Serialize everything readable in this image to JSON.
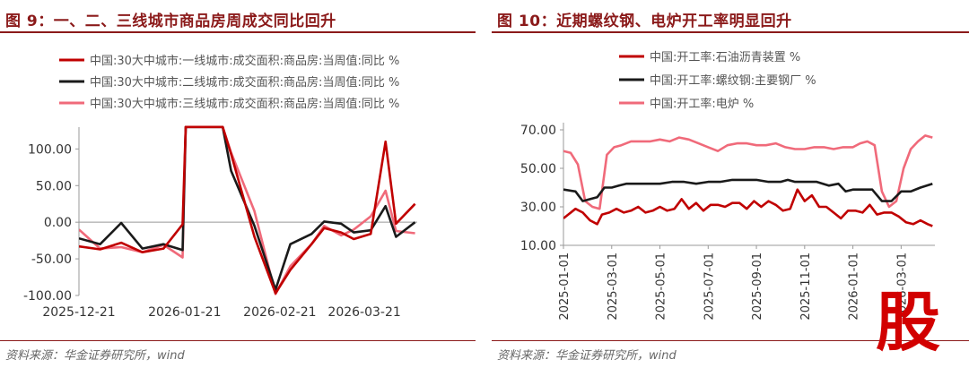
{
  "left": {
    "title": "图 9：一、二、三线城市商品房周成交同比回升",
    "source": "资料来源：华金证券研究所，wind",
    "chart_data": {
      "type": "line",
      "ylim": [
        -100,
        120
      ],
      "yticks": [
        100,
        50,
        0,
        -50,
        -100
      ],
      "ytick_labels": [
        "100.00",
        "50.00",
        "0.00",
        "-50.00",
        "-100.00"
      ],
      "xlim": [
        0,
        16
      ],
      "xtick_labels": [
        {
          "x": 0,
          "label": "2025-12-21"
        },
        {
          "x": 5,
          "label": "2026-01-21"
        },
        {
          "x": 9.5,
          "label": "2026-02-21"
        },
        {
          "x": 13.5,
          "label": "2026-03-21"
        }
      ],
      "series": [
        {
          "name": "中国:30大中城市:一线城市:成交面积:商品房:当周值:同比 %",
          "color": "#c00000",
          "x": [
            0,
            1,
            2,
            3,
            4,
            4.9,
            5.05,
            6.8,
            7.2,
            8.3,
            9.3,
            10,
            11,
            11.6,
            12.4,
            13,
            13.8,
            14.5,
            15,
            15.9
          ],
          "y": [
            -33,
            -37,
            -28,
            -41,
            -36,
            -3,
            130,
            130,
            93,
            -20,
            -97,
            -65,
            -30,
            -8,
            -14,
            -23,
            -16,
            110,
            -2,
            25
          ]
        },
        {
          "name": "中国:30大中城市:二线城市:成交面积:商品房:当周值:同比 %",
          "color": "#1a1a1a",
          "x": [
            0,
            1,
            2,
            3,
            4,
            4.9,
            5.05,
            6.8,
            7.2,
            8.3,
            9.3,
            10,
            11,
            11.6,
            12.4,
            13,
            13.8,
            14.5,
            15,
            15.9
          ],
          "y": [
            -22,
            -30,
            -1,
            -36,
            -30,
            -38,
            130,
            130,
            70,
            -5,
            -92,
            -30,
            -16,
            1,
            -2,
            -14,
            -11,
            22,
            -20,
            0
          ]
        },
        {
          "name": "中国:30大中城市:三线城市:成交面积:商品房:当周值:同比 %",
          "color": "#f06a7a",
          "x": [
            0,
            1,
            2,
            3,
            4,
            4.9,
            5.05,
            6.8,
            7.2,
            8.3,
            9.3,
            10,
            11,
            11.6,
            12.4,
            13,
            13.8,
            14.5,
            15,
            15.9
          ],
          "y": [
            -10,
            -36,
            -34,
            -41,
            -31,
            -48,
            130,
            130,
            95,
            15,
            -98,
            -60,
            -30,
            -5,
            -18,
            -10,
            8,
            43,
            -12,
            -15
          ]
        }
      ]
    }
  },
  "right": {
    "title": "图 10：近期螺纹钢、电炉开工率明显回升",
    "source": "资料来源：华金证券研究所，wind",
    "chart_data": {
      "type": "line",
      "ylim": [
        10,
        70
      ],
      "yticks": [
        70,
        50,
        30,
        10
      ],
      "ytick_labels": [
        "70.00",
        "50.00",
        "30.00",
        "10.00"
      ],
      "xlim": [
        0,
        15.4
      ],
      "xtick_labels": [
        {
          "x": 0,
          "label": "2025-01-01"
        },
        {
          "x": 2,
          "label": "2025-03-01"
        },
        {
          "x": 4,
          "label": "2025-05-01"
        },
        {
          "x": 6,
          "label": "2025-07-01"
        },
        {
          "x": 8,
          "label": "2025-09-01"
        },
        {
          "x": 10,
          "label": "2025-11-01"
        },
        {
          "x": 12,
          "label": "2026-01-01"
        },
        {
          "x": 14,
          "label": "2026-03-01"
        }
      ],
      "series": [
        {
          "name": "中国:开工率:石油沥青装置 %",
          "color": "#c00000",
          "x": [
            0,
            0.5,
            0.8,
            1.1,
            1.4,
            1.6,
            1.9,
            2.2,
            2.5,
            2.8,
            3.1,
            3.4,
            3.7,
            4,
            4.3,
            4.6,
            4.9,
            5.2,
            5.5,
            5.8,
            6.1,
            6.4,
            6.7,
            7,
            7.3,
            7.6,
            7.9,
            8.2,
            8.5,
            8.8,
            9.1,
            9.4,
            9.7,
            10,
            10.3,
            10.6,
            10.9,
            11.2,
            11.5,
            11.8,
            12.1,
            12.4,
            12.7,
            13,
            13.3,
            13.6,
            13.9,
            14.2,
            14.5,
            14.8,
            15.1,
            15.3
          ],
          "y": [
            24,
            29,
            27,
            23,
            21,
            26,
            27,
            29,
            27,
            28,
            30,
            27,
            28,
            30,
            28,
            29,
            34,
            29,
            32,
            28,
            31,
            31,
            30,
            32,
            32,
            29,
            33,
            30,
            33,
            31,
            28,
            29,
            39,
            33,
            36,
            30,
            30,
            27,
            24,
            28,
            28,
            27,
            31,
            26,
            27,
            27,
            25,
            22,
            21,
            23,
            21,
            20
          ]
        },
        {
          "name": "中国:开工率:螺纹钢:主要钢厂 %",
          "color": "#1a1a1a",
          "x": [
            0,
            0.5,
            0.8,
            1.1,
            1.4,
            1.7,
            2,
            2.3,
            2.6,
            3,
            3.5,
            4,
            4.5,
            5,
            5.5,
            6,
            6.5,
            7,
            7.5,
            8,
            8.5,
            9,
            9.3,
            9.6,
            10,
            10.5,
            11,
            11.4,
            11.7,
            12,
            12.4,
            12.8,
            13.2,
            13.6,
            14,
            14.4,
            14.8,
            15.3
          ],
          "y": [
            39,
            38,
            33,
            34,
            35,
            40,
            40,
            41,
            42,
            42,
            42,
            42,
            43,
            43,
            42,
            43,
            43,
            44,
            44,
            44,
            43,
            43,
            44,
            43,
            43,
            43,
            41,
            42,
            38,
            39,
            39,
            39,
            33,
            33,
            38,
            38,
            40,
            42
          ]
        },
        {
          "name": "中国:开工率:电炉 %",
          "color": "#f06a7a",
          "x": [
            0,
            0.3,
            0.6,
            0.9,
            1.2,
            1.5,
            1.8,
            2.1,
            2.4,
            2.8,
            3.2,
            3.6,
            4,
            4.4,
            4.8,
            5.2,
            5.6,
            6,
            6.4,
            6.8,
            7.2,
            7.6,
            8,
            8.4,
            8.8,
            9.2,
            9.6,
            10,
            10.4,
            10.8,
            11.2,
            11.6,
            12,
            12.3,
            12.6,
            12.9,
            13.2,
            13.5,
            13.8,
            14.1,
            14.4,
            14.7,
            15,
            15.3
          ],
          "y": [
            59,
            58,
            52,
            33,
            30,
            29,
            57,
            61,
            62,
            64,
            64,
            64,
            65,
            64,
            66,
            65,
            63,
            61,
            59,
            62,
            63,
            63,
            62,
            62,
            63,
            61,
            60,
            60,
            61,
            61,
            60,
            61,
            61,
            63,
            64,
            62,
            38,
            30,
            33,
            50,
            60,
            64,
            67,
            66
          ]
        }
      ]
    }
  },
  "watermark": {
    "text": "股"
  }
}
